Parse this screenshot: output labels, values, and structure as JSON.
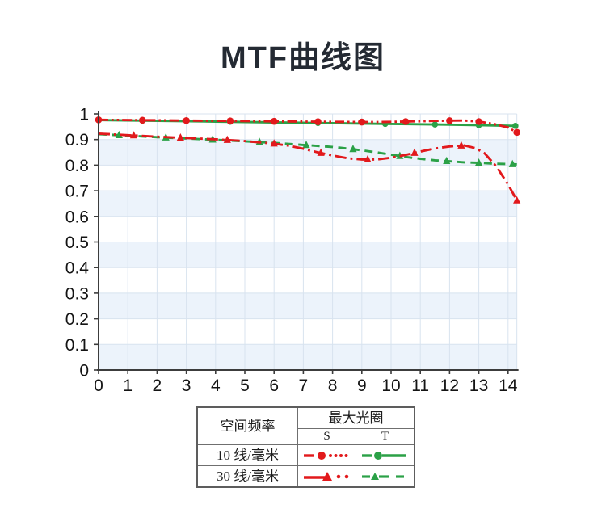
{
  "title": "MTF曲线图",
  "colors": {
    "red": "#e2191c",
    "green": "#2ba147",
    "band": "#ecf3fb",
    "grid": "#d8e3ef",
    "axis": "#3c3c3c",
    "tick_text": "#141414",
    "title_text": "#242a33",
    "table_border": "#6f6f6f"
  },
  "chart_data": {
    "type": "line",
    "title": "MTF曲线图",
    "xlabel": "",
    "ylabel": "",
    "xlim": [
      0,
      14.3
    ],
    "ylim": [
      0,
      1
    ],
    "grid": true,
    "legend_position": "bottom-table",
    "x_ticks": [
      0,
      1,
      2,
      3,
      4,
      5,
      6,
      7,
      8,
      9,
      10,
      11,
      12,
      13,
      14
    ],
    "x_tick_labels": [
      "0",
      "1",
      "2",
      "3",
      "4",
      "5",
      "6",
      "7",
      "8",
      "9",
      "10",
      "11",
      "12",
      "13",
      "14"
    ],
    "y_ticks": [
      0,
      0.1,
      0.2,
      0.3,
      0.4,
      0.5,
      0.6,
      0.7,
      0.8,
      0.9,
      1
    ],
    "y_tick_labels": [
      "0",
      "0.1",
      "0.2",
      "0.3",
      "0.4",
      "0.5",
      "0.6",
      "0.7",
      "0.8",
      "0.9",
      "1"
    ],
    "band_ranges_blue": [
      [
        0,
        0.1
      ],
      [
        0.2,
        0.3
      ],
      [
        0.4,
        0.5
      ],
      [
        0.6,
        0.7
      ],
      [
        0.8,
        0.9
      ]
    ],
    "series": [
      {
        "name": "10线/毫米 T",
        "color": "green",
        "style": "solid",
        "marker": "circle",
        "points": [
          [
            0,
            0.976
          ],
          [
            2,
            0.973
          ],
          [
            4,
            0.97
          ],
          [
            6,
            0.967
          ],
          [
            8,
            0.964
          ],
          [
            10,
            0.961
          ],
          [
            12,
            0.958
          ],
          [
            13,
            0.956
          ],
          [
            14.3,
            0.953
          ]
        ],
        "marker_x": [
          1.5,
          4.5,
          7.5,
          9.8,
          11.5,
          13,
          14.25
        ]
      },
      {
        "name": "30线/毫米 T",
        "color": "green",
        "style": "dashed",
        "marker": "triangle",
        "points": [
          [
            0,
            0.921
          ],
          [
            1,
            0.915
          ],
          [
            2,
            0.909
          ],
          [
            3,
            0.904
          ],
          [
            4,
            0.899
          ],
          [
            5,
            0.893
          ],
          [
            6,
            0.887
          ],
          [
            7,
            0.879
          ],
          [
            8,
            0.871
          ],
          [
            8.5,
            0.865
          ],
          [
            9,
            0.858
          ],
          [
            9.5,
            0.85
          ],
          [
            10,
            0.841
          ],
          [
            10.5,
            0.832
          ],
          [
            11,
            0.825
          ],
          [
            11.5,
            0.819
          ],
          [
            12,
            0.815
          ],
          [
            12.5,
            0.811
          ],
          [
            13,
            0.809
          ],
          [
            13.5,
            0.806
          ],
          [
            14,
            0.804
          ],
          [
            14.3,
            0.803
          ]
        ],
        "marker_x": [
          0.7,
          2.3,
          3.9,
          5.5,
          7.1,
          8.7,
          10.3,
          11.9,
          13.0,
          14.15
        ]
      },
      {
        "name": "10线/毫米 S",
        "color": "red",
        "style": "dash-dot-dot",
        "marker": "circle",
        "points": [
          [
            0,
            0.977
          ],
          [
            2,
            0.975
          ],
          [
            4,
            0.973
          ],
          [
            6,
            0.971
          ],
          [
            8,
            0.969
          ],
          [
            9.5,
            0.968
          ],
          [
            10.5,
            0.97
          ],
          [
            11.5,
            0.973
          ],
          [
            12.5,
            0.974
          ],
          [
            13,
            0.97
          ],
          [
            13.5,
            0.961
          ],
          [
            14,
            0.947
          ],
          [
            14.3,
            0.928
          ]
        ],
        "marker_x": [
          0,
          1.5,
          3,
          4.5,
          6,
          7.5,
          9,
          10.5,
          12,
          13,
          14.3
        ]
      },
      {
        "name": "30线/毫米 S",
        "color": "red",
        "style": "dash-dot",
        "marker": "triangle",
        "points": [
          [
            0,
            0.923
          ],
          [
            1,
            0.917
          ],
          [
            2,
            0.911
          ],
          [
            3,
            0.906
          ],
          [
            4,
            0.901
          ],
          [
            5,
            0.894
          ],
          [
            6,
            0.884
          ],
          [
            6.5,
            0.876
          ],
          [
            7,
            0.864
          ],
          [
            7.5,
            0.85
          ],
          [
            8,
            0.838
          ],
          [
            8.5,
            0.827
          ],
          [
            9,
            0.822
          ],
          [
            9.5,
            0.822
          ],
          [
            10,
            0.829
          ],
          [
            10.5,
            0.84
          ],
          [
            11,
            0.853
          ],
          [
            11.5,
            0.865
          ],
          [
            12,
            0.873
          ],
          [
            12.5,
            0.877
          ],
          [
            12.9,
            0.866
          ],
          [
            13.2,
            0.846
          ],
          [
            13.6,
            0.795
          ],
          [
            14,
            0.725
          ],
          [
            14.3,
            0.662
          ]
        ],
        "marker_x": [
          1.2,
          2.8,
          4.4,
          6.0,
          7.6,
          9.2,
          10.8,
          12.4,
          14.3
        ]
      }
    ]
  },
  "legend_table": {
    "col1_header": "空间频率",
    "col2_header": "最大光圈",
    "sub_header_s": "S",
    "sub_header_t": "T",
    "rows": [
      {
        "label": "10 线/毫米",
        "s_symbol": "red-dash-circle-dots",
        "t_symbol": "green-dash-circle-dash"
      },
      {
        "label": "30 线/毫米",
        "s_symbol": "red-line-triangle-dots",
        "t_symbol": "green-dash-triangle-dash"
      }
    ]
  }
}
